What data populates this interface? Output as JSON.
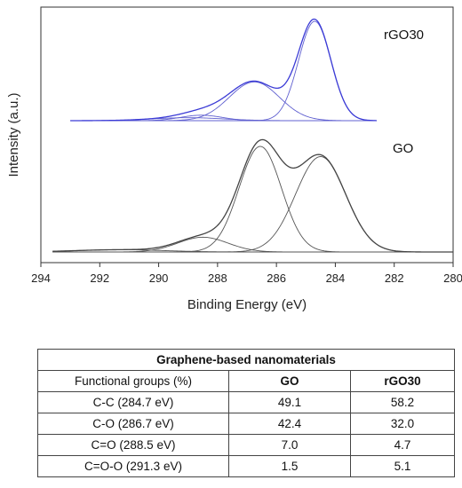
{
  "chart_data": {
    "type": "line",
    "xlabel": "Binding Energy (eV)",
    "ylabel": "Intensity (a.u.)",
    "xlim": [
      294,
      280
    ],
    "x_reversed": true,
    "x_ticks": [
      "294",
      "292",
      "290",
      "288",
      "286",
      "284",
      "282",
      "280"
    ],
    "panels": [
      {
        "label": "rGO30",
        "envelope_color": "#3b3bd6",
        "component_color": "#6060d0",
        "components": [
          {
            "center": 284.7,
            "height": 1.0,
            "width": 0.55
          },
          {
            "center": 286.75,
            "height": 0.39,
            "width": 0.85
          },
          {
            "center": 288.55,
            "height": 0.055,
            "width": 0.7
          },
          {
            "center": 289.0,
            "height": 0.03,
            "width": 1.2
          }
        ]
      },
      {
        "label": "GO",
        "envelope_color": "#444444",
        "component_color": "#555555",
        "components": [
          {
            "center": 284.5,
            "height": 0.84,
            "width": 0.85
          },
          {
            "center": 286.55,
            "height": 0.93,
            "width": 0.72
          },
          {
            "center": 288.5,
            "height": 0.13,
            "width": 0.85
          },
          {
            "center": 291.3,
            "height": 0.02,
            "width": 1.5
          }
        ]
      }
    ]
  },
  "table": {
    "caption": "Graphene-based nanomaterials",
    "header": [
      "Functional groups (%)",
      "GO",
      "rGO30"
    ],
    "rows": [
      [
        "C-C (284.7 eV)",
        "49.1",
        "58.2"
      ],
      [
        "C-O (286.7 eV)",
        "42.4",
        "32.0"
      ],
      [
        "C=O (288.5 eV)",
        "7.0",
        "4.7"
      ],
      [
        "C=O-O (291.3 eV)",
        "1.5",
        "5.1"
      ]
    ]
  }
}
